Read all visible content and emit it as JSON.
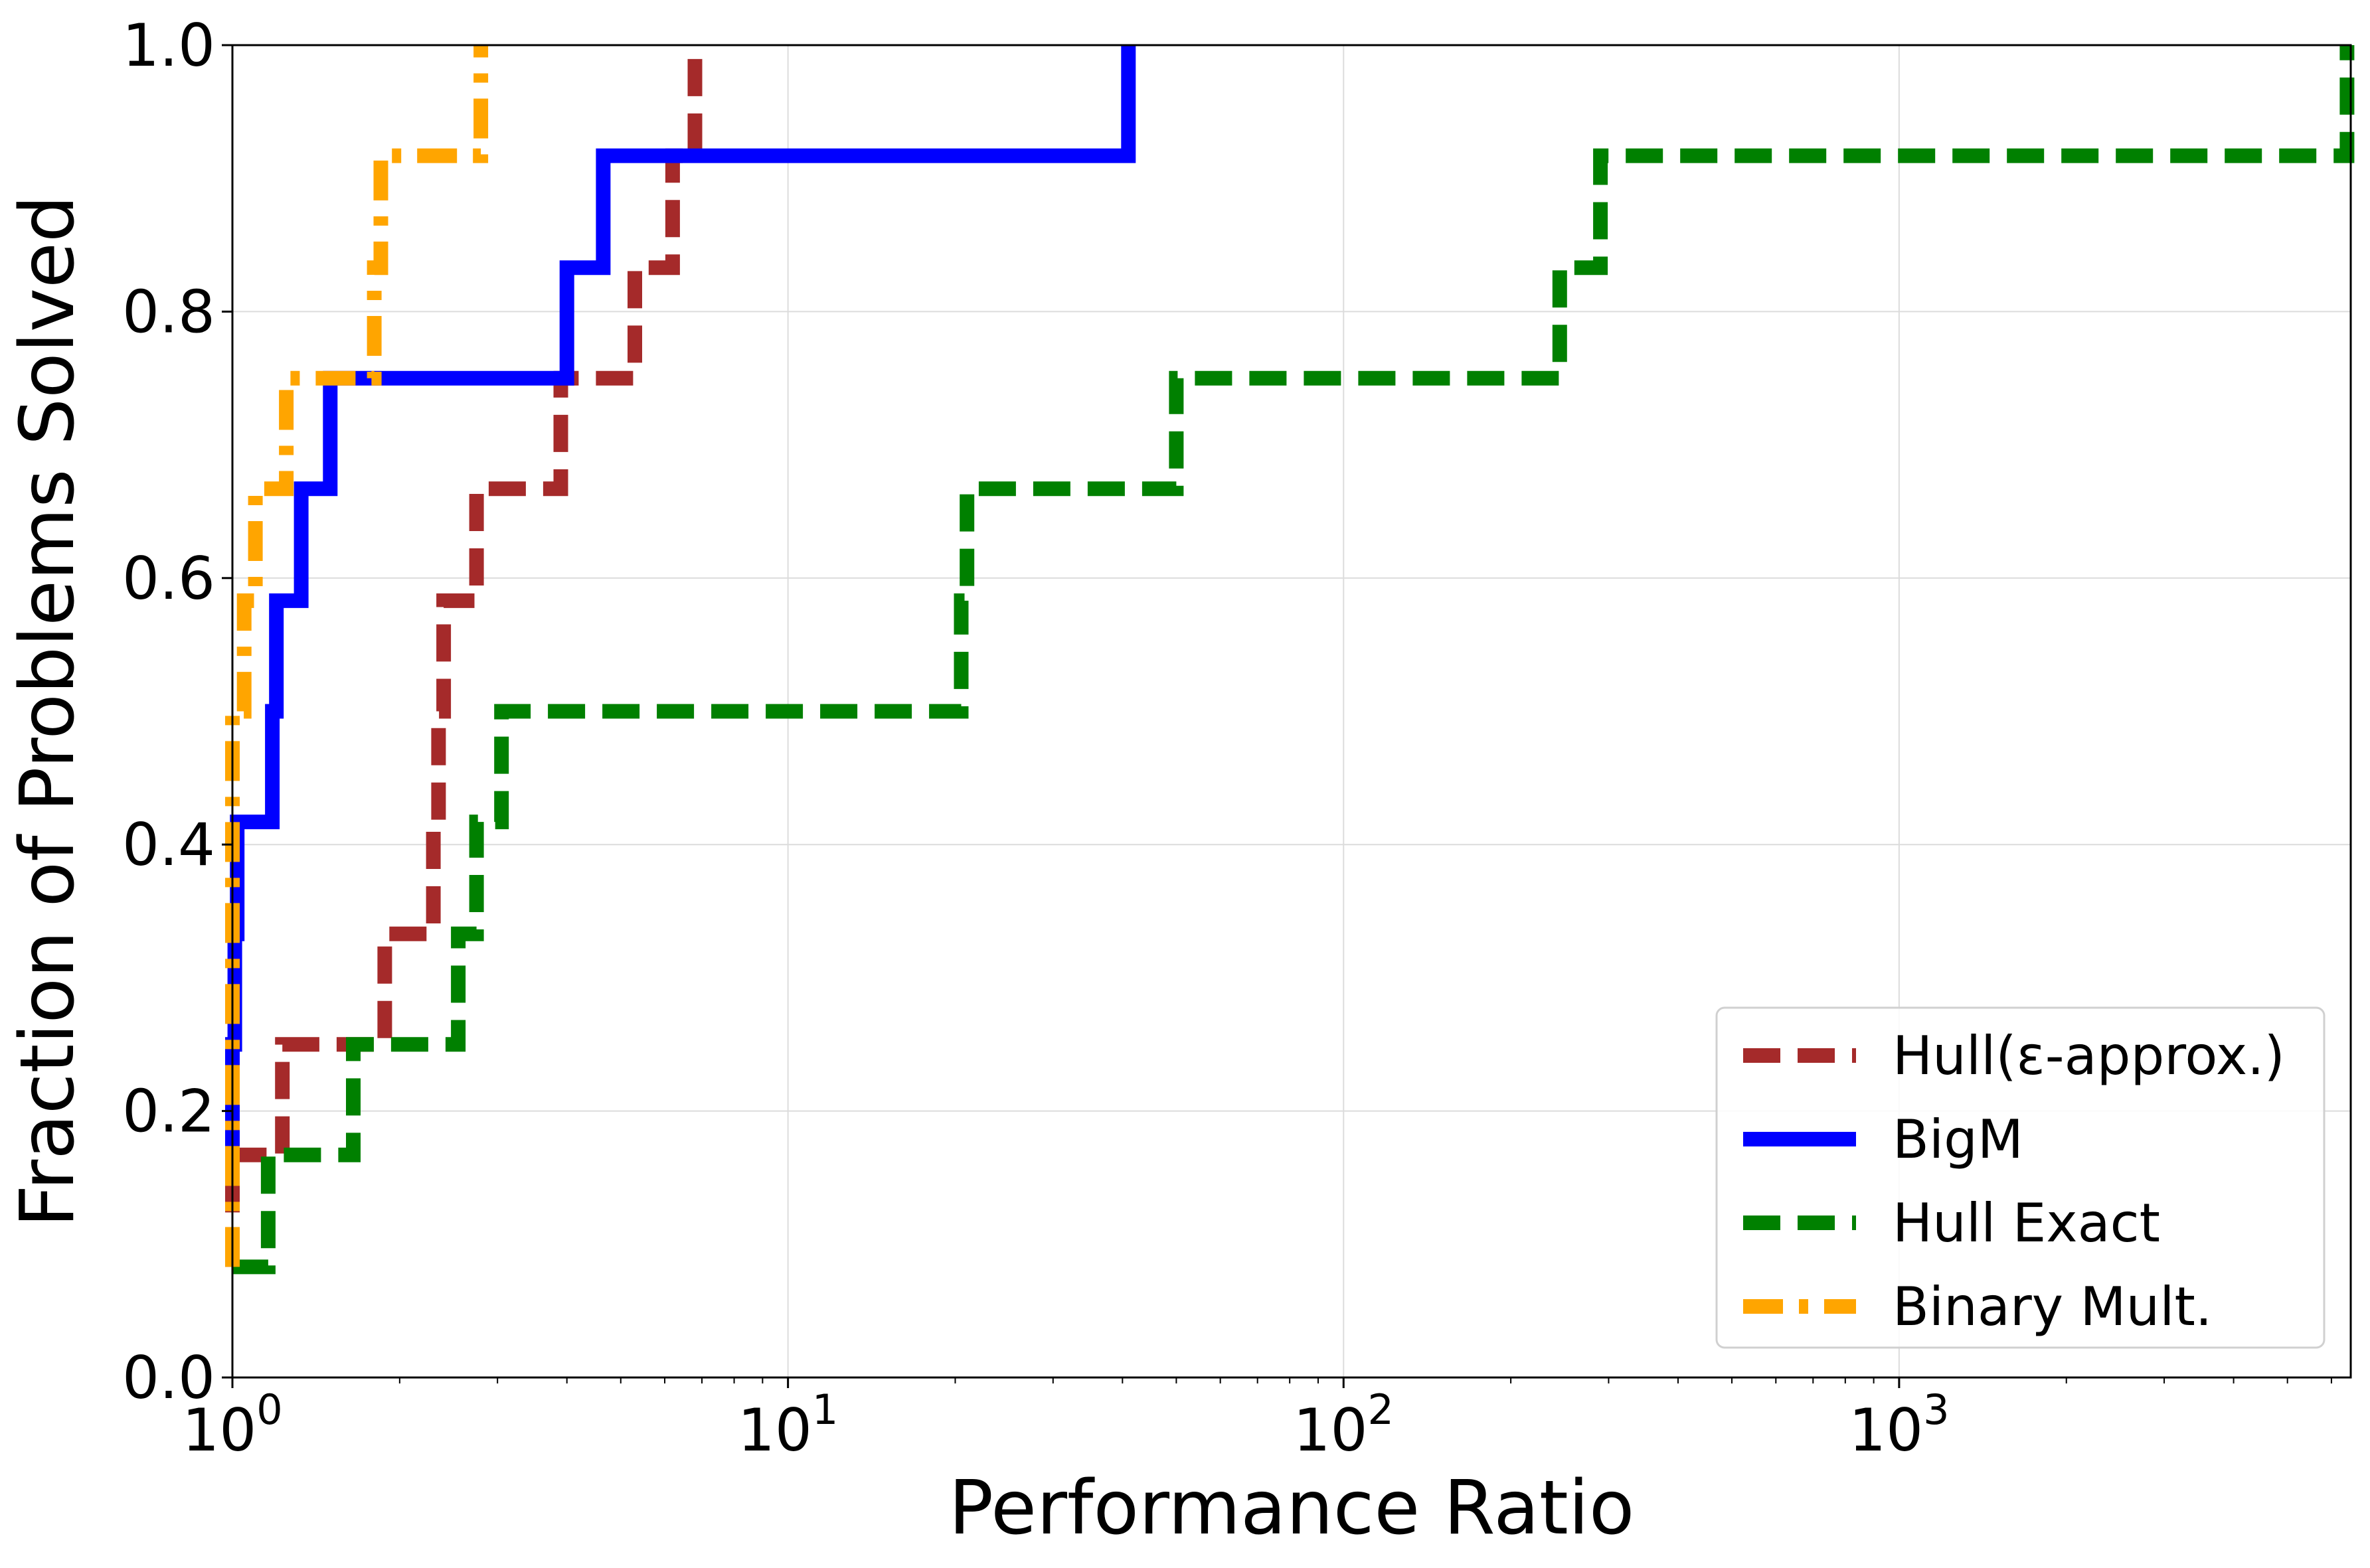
{
  "chart_data": {
    "type": "line",
    "drawstyle": "steps-post",
    "xscale": "log",
    "xlabel": "Performance Ratio",
    "ylabel": "Fraction of Problems Solved",
    "xlim": [
      1,
      6500
    ],
    "ylim": [
      0.0,
      1.0
    ],
    "grid": true,
    "legend_position": "lower-right",
    "x_ticks": [
      {
        "value": 1,
        "base": "10",
        "exp": "0"
      },
      {
        "value": 10,
        "base": "10",
        "exp": "1"
      },
      {
        "value": 100,
        "base": "10",
        "exp": "2"
      },
      {
        "value": 1000,
        "base": "10",
        "exp": "3"
      }
    ],
    "y_ticks": [
      {
        "value": 0.0,
        "label": "0.0"
      },
      {
        "value": 0.2,
        "label": "0.2"
      },
      {
        "value": 0.4,
        "label": "0.4"
      },
      {
        "value": 0.6,
        "label": "0.6"
      },
      {
        "value": 0.8,
        "label": "0.8"
      },
      {
        "value": 1.0,
        "label": "1.0"
      }
    ],
    "series": [
      {
        "name": "Hull(ε-approx.)",
        "color": "#a52a2a",
        "linestyle": "dashed",
        "points": [
          [
            1.0,
            0.083
          ],
          [
            1.0,
            0.167
          ],
          [
            1.23,
            0.167
          ],
          [
            1.23,
            0.25
          ],
          [
            1.88,
            0.25
          ],
          [
            1.88,
            0.333
          ],
          [
            2.3,
            0.333
          ],
          [
            2.3,
            0.417
          ],
          [
            2.35,
            0.417
          ],
          [
            2.35,
            0.5
          ],
          [
            2.4,
            0.5
          ],
          [
            2.4,
            0.583
          ],
          [
            2.75,
            0.583
          ],
          [
            2.75,
            0.667
          ],
          [
            3.9,
            0.667
          ],
          [
            3.9,
            0.75
          ],
          [
            5.3,
            0.75
          ],
          [
            5.3,
            0.833
          ],
          [
            6.2,
            0.833
          ],
          [
            6.2,
            0.917
          ],
          [
            6.8,
            0.917
          ],
          [
            6.8,
            1.0
          ]
        ]
      },
      {
        "name": "BigM",
        "color": "#0000ff",
        "linestyle": "solid",
        "points": [
          [
            1.0,
            0.167
          ],
          [
            1.0,
            0.25
          ],
          [
            1.01,
            0.25
          ],
          [
            1.01,
            0.333
          ],
          [
            1.02,
            0.333
          ],
          [
            1.02,
            0.417
          ],
          [
            1.18,
            0.417
          ],
          [
            1.18,
            0.5
          ],
          [
            1.2,
            0.5
          ],
          [
            1.2,
            0.583
          ],
          [
            1.33,
            0.583
          ],
          [
            1.33,
            0.667
          ],
          [
            1.5,
            0.667
          ],
          [
            1.5,
            0.75
          ],
          [
            4.0,
            0.75
          ],
          [
            4.0,
            0.833
          ],
          [
            4.65,
            0.833
          ],
          [
            4.65,
            0.917
          ],
          [
            41,
            0.917
          ],
          [
            41,
            1.0
          ]
        ]
      },
      {
        "name": "Hull Exact",
        "color": "#008000",
        "linestyle": "dashed",
        "points": [
          [
            1.0,
            0.083
          ],
          [
            1.16,
            0.083
          ],
          [
            1.16,
            0.167
          ],
          [
            1.65,
            0.167
          ],
          [
            1.65,
            0.25
          ],
          [
            2.55,
            0.25
          ],
          [
            2.55,
            0.333
          ],
          [
            2.75,
            0.333
          ],
          [
            2.75,
            0.417
          ],
          [
            3.05,
            0.417
          ],
          [
            3.05,
            0.5
          ],
          [
            20.5,
            0.5
          ],
          [
            20.5,
            0.583
          ],
          [
            21,
            0.583
          ],
          [
            21,
            0.667
          ],
          [
            50,
            0.667
          ],
          [
            50,
            0.75
          ],
          [
            245,
            0.75
          ],
          [
            245,
            0.833
          ],
          [
            290,
            0.833
          ],
          [
            290,
            0.917
          ],
          [
            6400,
            0.917
          ],
          [
            6400,
            1.0
          ]
        ]
      },
      {
        "name": "Binary Mult.",
        "color": "#ffa500",
        "linestyle": "dash-dot",
        "points": [
          [
            1.0,
            0.083
          ],
          [
            1.0,
            0.5
          ],
          [
            1.05,
            0.5
          ],
          [
            1.05,
            0.583
          ],
          [
            1.1,
            0.583
          ],
          [
            1.1,
            0.667
          ],
          [
            1.25,
            0.667
          ],
          [
            1.25,
            0.75
          ],
          [
            1.8,
            0.75
          ],
          [
            1.8,
            0.833
          ],
          [
            1.85,
            0.833
          ],
          [
            1.85,
            0.917
          ],
          [
            2.8,
            0.917
          ],
          [
            2.8,
            1.0
          ]
        ]
      }
    ]
  }
}
